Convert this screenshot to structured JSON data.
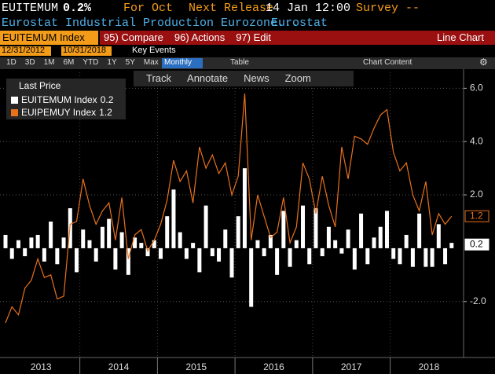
{
  "header": {
    "ticker": "EUITEMUM",
    "value": "0.2%",
    "period": "For Oct",
    "next_release_label": "Next Release",
    "next_release": "14 Jan 12:00",
    "survey": "Survey --",
    "description": "Eurostat Industrial Production Eurozone...",
    "source": "Eurostat"
  },
  "toolbar": {
    "security": "EUITEMUM Index",
    "menu": [
      "95) Compare",
      "96) Actions",
      "97) Edit"
    ],
    "chart_kind": "Line Chart",
    "start_date": "12/31/2012",
    "end_date": "10/31/2018",
    "key_events": "Key Events",
    "periods": [
      "1D",
      "3D",
      "1M",
      "6M",
      "YTD",
      "1Y",
      "5Y",
      "Max"
    ],
    "frequency": "Monthly",
    "table": "Table",
    "chart_content": "Chart Content",
    "tools": [
      "Track",
      "Annotate",
      "News",
      "Zoom"
    ]
  },
  "chart_data": {
    "type": "bar_line",
    "legend_title": "Last Price",
    "categories": [
      null,
      null,
      null,
      null,
      null,
      null,
      "2013",
      null,
      null,
      null,
      null,
      null,
      null,
      null,
      null,
      null,
      null,
      null,
      "2014",
      null,
      null,
      null,
      null,
      null,
      null,
      null,
      null,
      null,
      null,
      null,
      "2015",
      null,
      null,
      null,
      null,
      null,
      null,
      null,
      null,
      null,
      null,
      null,
      "2016",
      null,
      null,
      null,
      null,
      null,
      null,
      null,
      null,
      null,
      null,
      null,
      "2017",
      null,
      null,
      null,
      null,
      null,
      null,
      null,
      null,
      null,
      null,
      null,
      "2018",
      null,
      null,
      null
    ],
    "series": [
      {
        "name": "EUITEMUM Index",
        "kind": "bar",
        "color": "#ffffff",
        "values": [
          0.5,
          -0.4,
          0.3,
          -0.3,
          0.4,
          0.5,
          -0.5,
          1.0,
          -0.6,
          0.4,
          1.5,
          -0.9,
          0.7,
          0.3,
          -0.5,
          0.8,
          1.1,
          -0.8,
          0.6,
          -1.0,
          0.4,
          0.2,
          -0.3,
          0.3,
          -0.4,
          1.2,
          2.2,
          0.6,
          -0.4,
          0.2,
          -0.9,
          1.6,
          -0.3,
          -0.5,
          0.7,
          -1.1,
          1.2,
          3.0,
          -2.2,
          0.3,
          -0.3,
          0.5,
          -1.0,
          1.4,
          -0.7,
          0.3,
          1.6,
          -0.6,
          1.5,
          -0.3,
          0.8,
          0.3,
          -0.2,
          0.7,
          -0.8,
          1.3,
          -0.6,
          0.4,
          0.8,
          1.4,
          -0.4,
          -0.6,
          0.5,
          -0.7,
          1.3,
          -0.7,
          -0.7,
          0.9,
          -0.6,
          0.2
        ]
      },
      {
        "name": "EUIPEMUY Index",
        "kind": "line",
        "color": "#e8711c",
        "values": [
          -2.8,
          -2.2,
          -2.5,
          -1.5,
          -1.2,
          -0.4,
          -1.1,
          -1.0,
          -1.9,
          -1.8,
          0.9,
          1.0,
          2.6,
          1.6,
          0.9,
          1.4,
          1.7,
          0.3,
          1.9,
          -0.4,
          0.5,
          0.7,
          -0.1,
          0.3,
          0.9,
          1.8,
          3.3,
          2.5,
          2.9,
          1.7,
          3.8,
          3.0,
          3.5,
          2.8,
          3.2,
          2.0,
          2.7,
          5.8,
          0.3,
          2.0,
          1.2,
          0.4,
          0.6,
          1.9,
          0.2,
          0.8,
          3.2,
          2.6,
          1.3,
          2.7,
          1.6,
          0.8,
          3.8,
          2.6,
          4.2,
          4.1,
          3.9,
          4.5,
          5.0,
          5.2,
          3.6,
          2.9,
          3.2,
          2.0,
          1.4,
          2.5,
          0.5,
          1.3,
          0.9,
          1.2
        ]
      }
    ],
    "ylim": [
      -4.1,
      6.6
    ],
    "yticks": [
      {
        "value": 6,
        "label": "6.0"
      },
      {
        "value": 4,
        "label": "4.0"
      },
      {
        "value": 2,
        "label": "2.0"
      },
      {
        "value": -2,
        "label": "-2.0"
      }
    ],
    "grid": true
  }
}
